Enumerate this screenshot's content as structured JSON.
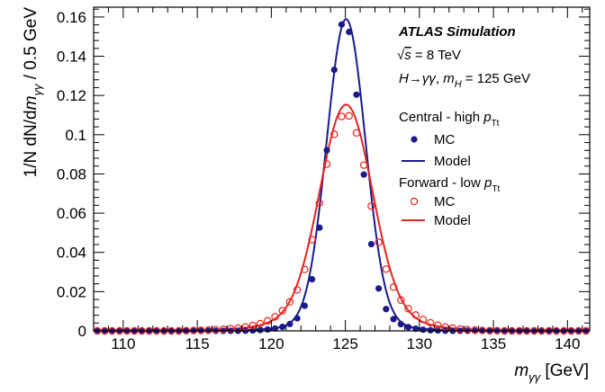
{
  "chart_data": {
    "type": "scatter",
    "xlabel": "m_γγ [GeV]",
    "ylabel": "1/N dN/dm_γγ / 0.5 GeV",
    "xlim": [
      108,
      141.5
    ],
    "ylim": [
      0,
      0.165
    ],
    "x_ticks": [
      110,
      115,
      120,
      125,
      130,
      135,
      140
    ],
    "x_tick_labels": [
      "110",
      "115",
      "120",
      "125",
      "130",
      "135",
      "140"
    ],
    "y_ticks": [
      0,
      0.02,
      0.04,
      0.06,
      0.08,
      0.1,
      0.12,
      0.14,
      0.16
    ],
    "y_tick_labels": [
      "0",
      "0.02",
      "0.04",
      "0.06",
      "0.08",
      "0.1",
      "0.12",
      "0.14",
      "0.16"
    ],
    "grid": false,
    "legend_position": "top-right",
    "annotations": {
      "label": "ATLAS Simulation",
      "energy": "√s = 8 TeV",
      "process": "H→γγ, m_H = 125 GeV"
    },
    "legend": [
      {
        "kind": "header",
        "text": "Central - high p_Tt"
      },
      {
        "kind": "marker-filled",
        "text": "MC",
        "color": "#1a1a8c"
      },
      {
        "kind": "line",
        "text": "Model",
        "color": "#1a1a8c"
      },
      {
        "kind": "header",
        "text": "Forward - low p_Tt"
      },
      {
        "kind": "marker-open",
        "text": "MC",
        "color": "#e8231c"
      },
      {
        "kind": "line",
        "text": "Model",
        "color": "#e8231c"
      }
    ],
    "series": [
      {
        "name": "Central - high p_Tt MC",
        "style": "marker-filled",
        "color": "#1a1a8c",
        "x": [
          108.25,
          108.75,
          109.25,
          109.75,
          110.25,
          110.75,
          111.25,
          111.75,
          112.25,
          112.75,
          113.25,
          113.75,
          114.25,
          114.75,
          115.25,
          115.75,
          116.25,
          116.75,
          117.25,
          117.75,
          118.25,
          118.75,
          119.25,
          119.75,
          120.25,
          120.75,
          121.25,
          121.75,
          122.25,
          122.75,
          123.25,
          123.75,
          124.25,
          124.75,
          125.25,
          125.75,
          126.25,
          126.75,
          127.25,
          127.75,
          128.25,
          128.75,
          129.25,
          129.75,
          130.25,
          130.75,
          131.25,
          131.75,
          132.25,
          132.75,
          133.25,
          133.75,
          134.25,
          134.75,
          135.25,
          135.75,
          136.25,
          136.75,
          137.25,
          137.75,
          138.25,
          138.75,
          139.25,
          139.75,
          140.25,
          140.75,
          141.25
        ],
        "y": [
          0,
          0,
          0,
          0,
          0,
          0,
          0,
          0,
          0,
          0,
          0,
          0,
          0,
          0,
          0,
          0,
          0,
          0,
          0,
          0,
          0.0001,
          0.0002,
          0.0004,
          0.0007,
          0.0012,
          0.002,
          0.0035,
          0.0064,
          0.0128,
          0.0263,
          0.0526,
          0.0921,
          0.1331,
          0.1562,
          0.1524,
          0.1204,
          0.0797,
          0.0442,
          0.0216,
          0.0111,
          0.006,
          0.0034,
          0.0019,
          0.0011,
          0.0006,
          0.0003,
          0.0002,
          0.0001,
          0,
          0,
          0,
          0,
          0,
          0,
          0,
          0,
          0,
          0,
          0,
          0,
          0,
          0,
          0,
          0,
          0,
          0,
          0
        ]
      },
      {
        "name": "Central - high p_Tt Model",
        "style": "line",
        "color": "#1a1a8c",
        "model": {
          "mu": 125.05,
          "sigma": 1.3,
          "norm": 0.1553,
          "tail_norm": 0.0036,
          "tail_width": 3.3
        }
      },
      {
        "name": "Forward - low p_Tt MC",
        "style": "marker-open",
        "color": "#e8231c",
        "x": [
          108.25,
          108.75,
          109.25,
          109.75,
          110.25,
          110.75,
          111.25,
          111.75,
          112.25,
          112.75,
          113.25,
          113.75,
          114.25,
          114.75,
          115.25,
          115.75,
          116.25,
          116.75,
          117.25,
          117.75,
          118.25,
          118.75,
          119.25,
          119.75,
          120.25,
          120.75,
          121.25,
          121.75,
          122.25,
          122.75,
          123.25,
          123.75,
          124.25,
          124.75,
          125.25,
          125.75,
          126.25,
          126.75,
          127.25,
          127.75,
          128.25,
          128.75,
          129.25,
          129.75,
          130.25,
          130.75,
          131.25,
          131.75,
          132.25,
          132.75,
          133.25,
          133.75,
          134.25,
          134.75,
          135.25,
          135.75,
          136.25,
          136.75,
          137.25,
          137.75,
          138.25,
          138.75,
          139.25,
          139.75,
          140.25,
          140.75,
          141.25
        ],
        "y": [
          0,
          0,
          0,
          0,
          0,
          0,
          0,
          0,
          0,
          0,
          0,
          0,
          0.0001,
          0.0002,
          0.0003,
          0.0004,
          0.0006,
          0.0008,
          0.0011,
          0.0014,
          0.002,
          0.0027,
          0.0037,
          0.0051,
          0.0072,
          0.0103,
          0.0148,
          0.0209,
          0.0313,
          0.0465,
          0.0651,
          0.085,
          0.1002,
          0.1093,
          0.1096,
          0.1009,
          0.0845,
          0.0636,
          0.0452,
          0.0315,
          0.0223,
          0.0157,
          0.0113,
          0.0081,
          0.0058,
          0.0041,
          0.0029,
          0.002,
          0.0014,
          0.0009,
          0.0006,
          0.0004,
          0.0002,
          0.0001,
          0.0001,
          0,
          0,
          0,
          0,
          0,
          0,
          0,
          0,
          0,
          0,
          0,
          0
        ]
      },
      {
        "name": "Forward - low p_Tt Model",
        "style": "line",
        "color": "#e8231c",
        "model": {
          "mu": 125.05,
          "sigma": 1.75,
          "norm": 0.1068,
          "tail_norm": 0.0085,
          "tail_width": 3.7
        }
      }
    ]
  }
}
